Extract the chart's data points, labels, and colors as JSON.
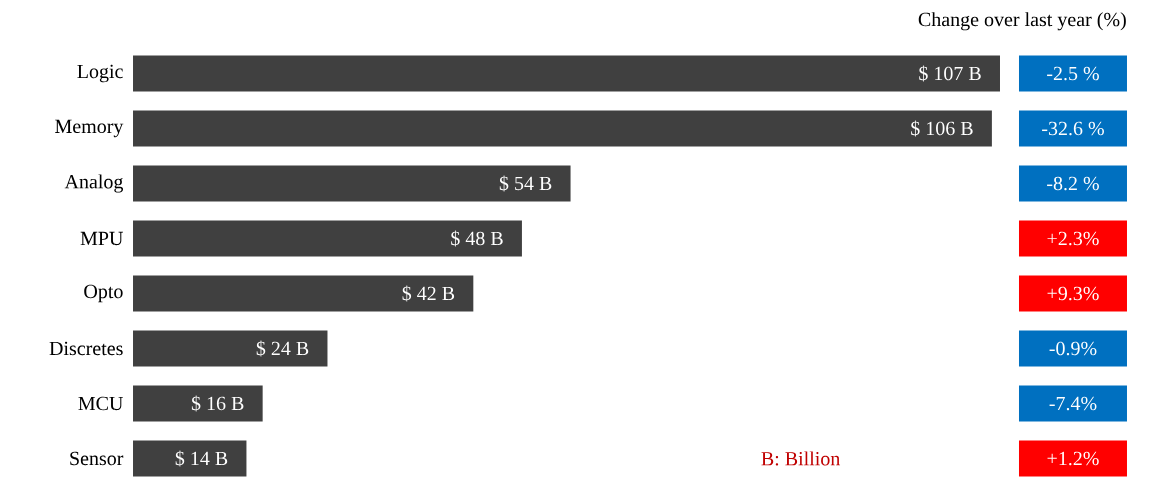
{
  "chart_data": [
    {
      "type": "bar",
      "orientation": "horizontal",
      "categories": [
        "Logic",
        "Memory",
        "Analog",
        "MPU",
        "Opto",
        "Discretes",
        "MCU",
        "Sensor"
      ],
      "values": [
        107,
        106,
        54,
        48,
        42,
        24,
        16,
        14
      ],
      "value_labels": [
        "$ 107 B",
        "$ 106 B",
        "$ 54 B",
        "$ 48 B",
        "$ 42 B",
        "$ 24 B",
        "$ 16 B",
        "$ 14 B"
      ],
      "color": "#404040",
      "annotations": [
        "B: Billion"
      ]
    },
    {
      "type": "other",
      "title": "Change over last year (%)",
      "categories": [
        null,
        null,
        null,
        null,
        null,
        null,
        null,
        null
      ],
      "values": [
        -2.5,
        -32.6,
        -8.2,
        2.3,
        9.3,
        -0.9,
        -7.4,
        1.2
      ],
      "value_labels": [
        "-2.5 %",
        "-32.6 %",
        "-8.2 %",
        "+2.3%",
        "+9.3%",
        "-0.9%",
        "-7.4%",
        "+1.2%"
      ],
      "colors": [
        "#0070c0",
        "#0070c0",
        "#0070c0",
        "#ff0000",
        "#ff0000",
        "#0070c0",
        "#0070c0",
        "#ff0000"
      ]
    }
  ]
}
